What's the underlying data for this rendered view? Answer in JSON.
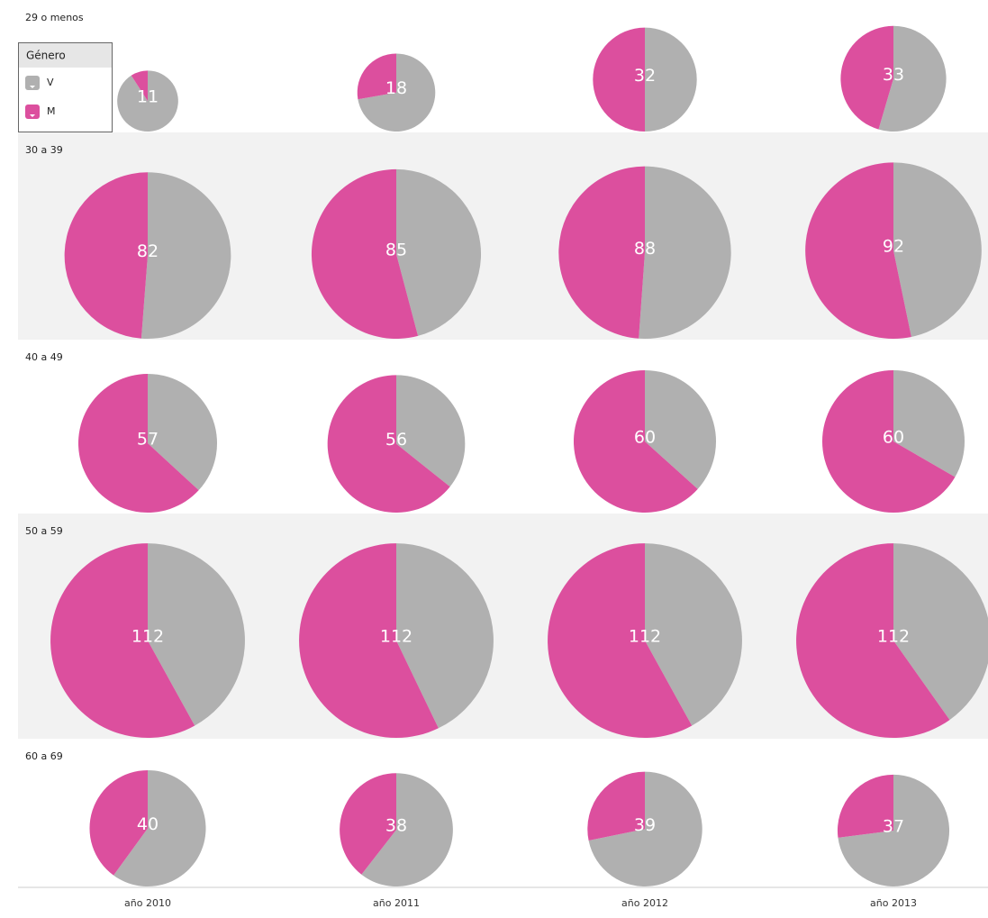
{
  "chart_data": {
    "type": "pie-grid",
    "rows": [
      "29 o menos",
      "30 a 39",
      "40 a 49",
      "50 a 59",
      "60 a 69"
    ],
    "columns": [
      "año 2010",
      "año 2011",
      "año 2012",
      "año 2013"
    ],
    "legend_title": "Género",
    "series": [
      {
        "name": "V",
        "color": "#b0b0b0",
        "values": [
          [
            10,
            13,
            16,
            18
          ],
          [
            42,
            39,
            45,
            43
          ],
          [
            21,
            20,
            22,
            20
          ],
          [
            47,
            48,
            47,
            45
          ],
          [
            24,
            23,
            28,
            27
          ]
        ]
      },
      {
        "name": "M",
        "color": "#dc4f9e",
        "values": [
          [
            1,
            5,
            16,
            15
          ],
          [
            40,
            46,
            43,
            49
          ],
          [
            36,
            36,
            38,
            40
          ],
          [
            65,
            64,
            65,
            67
          ],
          [
            16,
            15,
            11,
            10
          ]
        ]
      }
    ],
    "totals": [
      [
        11,
        18,
        32,
        33
      ],
      [
        82,
        85,
        88,
        92
      ],
      [
        57,
        56,
        60,
        60
      ],
      [
        112,
        112,
        112,
        112
      ],
      [
        40,
        38,
        39,
        37
      ]
    ]
  }
}
